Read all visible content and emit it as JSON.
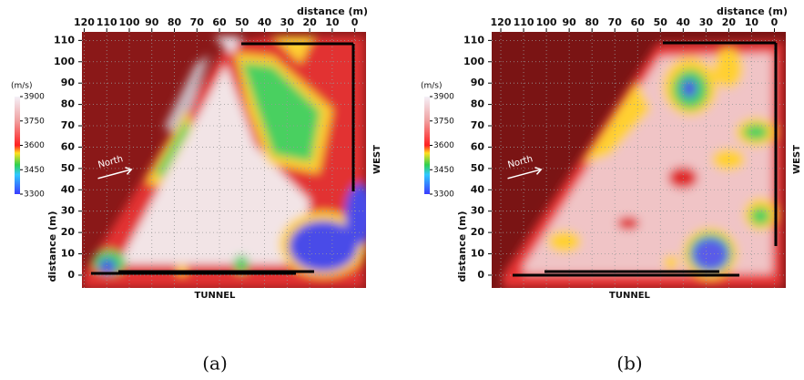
{
  "chart_data": [
    {
      "type": "heatmap",
      "xlabel": "distance (m)",
      "ylabel": "distance (m)",
      "xlim": [
        121,
        -5
      ],
      "ylim": [
        -6,
        114
      ],
      "xticks": [
        120,
        110,
        100,
        90,
        80,
        70,
        60,
        50,
        40,
        30,
        20,
        10,
        0
      ],
      "yticks": [
        0,
        10,
        20,
        30,
        40,
        50,
        60,
        70,
        80,
        90,
        100,
        110
      ],
      "grid": true,
      "colorbar": {
        "label": "(m/s)",
        "lim": [
          3300,
          3900
        ],
        "ticks": [
          3300,
          3450,
          3600,
          3750,
          3900
        ]
      },
      "annotations": [
        "North",
        "TUNNEL",
        "WEST"
      ],
      "caption": "(a)"
    },
    {
      "type": "heatmap",
      "xlabel": "distance (m)",
      "ylabel": "distance (m)",
      "xlim": [
        124,
        -5
      ],
      "ylim": [
        -6,
        114
      ],
      "xticks": [
        120,
        110,
        100,
        90,
        80,
        70,
        60,
        50,
        40,
        30,
        20,
        10,
        0
      ],
      "yticks": [
        0,
        10,
        20,
        30,
        40,
        50,
        60,
        70,
        80,
        90,
        100,
        110
      ],
      "grid": true,
      "colorbar": {
        "label": "(m/s)",
        "lim": [
          3300,
          3900
        ],
        "ticks": [
          3300,
          3450,
          3600,
          3750,
          3900
        ]
      },
      "annotations": [
        "North",
        "TUNNEL",
        "WEST"
      ],
      "caption": "(b)"
    }
  ]
}
